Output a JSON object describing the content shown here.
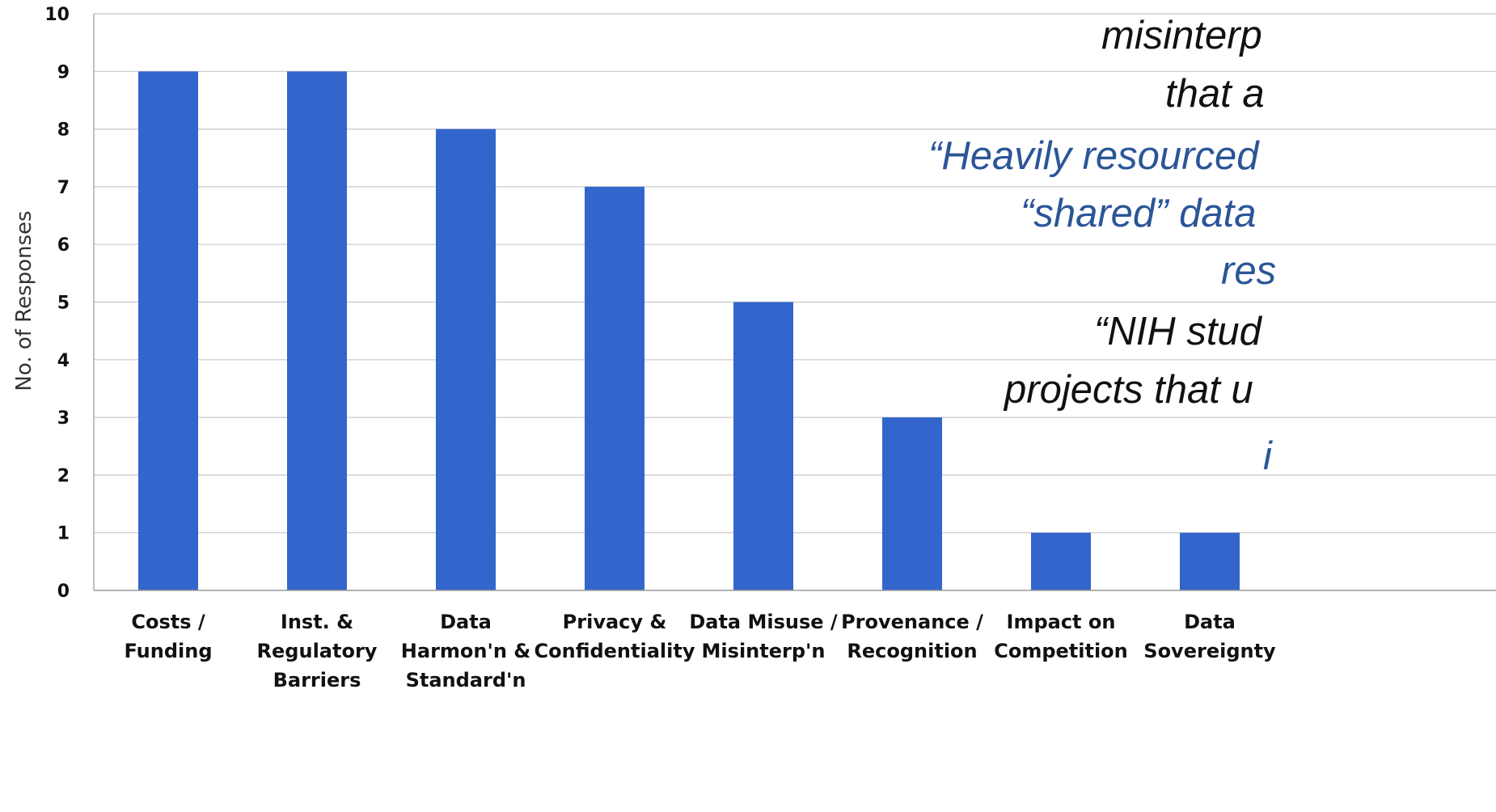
{
  "chart_data": {
    "type": "bar",
    "categories": [
      [
        "Costs /",
        "Funding"
      ],
      [
        "Inst. &",
        "Regulatory",
        "Barriers"
      ],
      [
        "Data",
        "Harmon'n &",
        "Standard'n"
      ],
      [
        "Privacy &",
        "Confidentiality"
      ],
      [
        "Data Misuse /",
        "Misinterp'n"
      ],
      [
        "Provenance /",
        "Recognition"
      ],
      [
        "Impact on",
        "Competition"
      ],
      [
        "Data",
        "Sovereignty"
      ]
    ],
    "values": [
      9,
      9,
      8,
      7,
      5,
      3,
      1,
      1
    ],
    "ylabel": "No. of Responses",
    "ylim": [
      0,
      10
    ],
    "yticks": [
      0,
      1,
      2,
      3,
      4,
      5,
      6,
      7,
      8,
      9,
      10
    ],
    "grid": true,
    "colors": {
      "bar": "#3366CC",
      "grid": "#C8C8C8",
      "axis": "#9A9A9A"
    }
  },
  "overlay_text": {
    "colors": {
      "dark": "#111111",
      "blue": "#2B5597"
    },
    "lines": [
      {
        "text": "misinterp",
        "color": "dark"
      },
      {
        "text": "that a",
        "color": "dark"
      },
      {
        "text": "“Heavily resourced",
        "color": "blue"
      },
      {
        "text": "“shared” data",
        "color": "blue"
      },
      {
        "text": "res",
        "color": "blue"
      },
      {
        "text": "“NIH stud",
        "color": "dark"
      },
      {
        "text": "projects that u",
        "color": "dark"
      },
      {
        "text": "i",
        "color": "blue"
      }
    ]
  }
}
